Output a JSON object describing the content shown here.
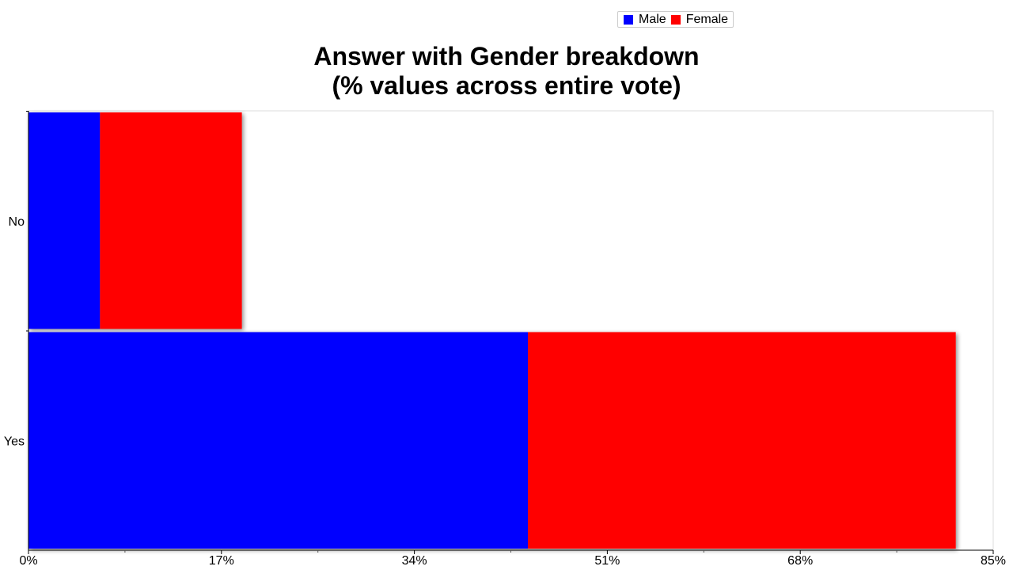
{
  "chart_data": {
    "type": "bar",
    "orientation": "horizontal",
    "stacked": true,
    "title": "Answer with Gender breakdown",
    "subtitle": "(% values across entire vote)",
    "categories": [
      "No",
      "Yes"
    ],
    "series": [
      {
        "name": "Male",
        "color": "#0000ff",
        "values": [
          6.3,
          44.0
        ]
      },
      {
        "name": "Female",
        "color": "#ff0000",
        "values": [
          12.5,
          37.7
        ]
      }
    ],
    "xlim": [
      0,
      85
    ],
    "xticks": [
      "0%",
      "17%",
      "34%",
      "51%",
      "68%",
      "85%"
    ],
    "legend_position": "top-right",
    "grid": false
  }
}
